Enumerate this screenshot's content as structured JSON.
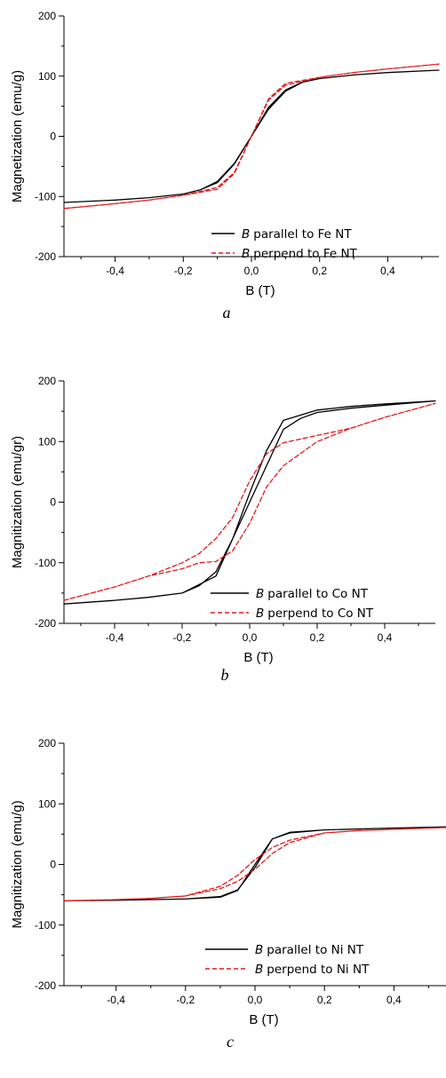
{
  "chart_data": [
    {
      "type": "line",
      "caption": "a",
      "xlabel": "B (T)",
      "ylabel": "Magnetization (emu/g)",
      "xlim": [
        -0.55,
        0.55
      ],
      "ylim": [
        -200,
        200
      ],
      "xticks": [
        -0.4,
        -0.2,
        0.0,
        0.2,
        0.4
      ],
      "xtick_labels": [
        "-0,4",
        "-0,2",
        "0,0",
        "0,2",
        "0,4"
      ],
      "yticks": [
        -200,
        -100,
        0,
        100,
        200
      ],
      "ytick_labels": [
        "-200",
        "-100",
        "0",
        "100",
        "200"
      ],
      "legend_position": "bottom-right",
      "series": [
        {
          "name_prefix": "B",
          "name": "parallel to Fe NT",
          "color": "#000000",
          "dash": "solid",
          "x": [
            -0.55,
            -0.4,
            -0.3,
            -0.2,
            -0.15,
            -0.1,
            -0.05,
            0.0,
            0.05,
            0.1,
            0.15,
            0.2,
            0.3,
            0.4,
            0.55,
            0.4,
            0.3,
            0.2,
            0.15,
            0.1,
            0.05,
            0.0,
            -0.05,
            -0.1,
            -0.15,
            -0.2,
            -0.3,
            -0.4,
            -0.55
          ],
          "y": [
            -110,
            -106,
            -102,
            -96,
            -89,
            -75,
            -45,
            0,
            45,
            75,
            90,
            96,
            102,
            106,
            110,
            106,
            102,
            96,
            90,
            77,
            48,
            0,
            -46,
            -77,
            -89,
            -96,
            -102,
            -106,
            -110
          ]
        },
        {
          "name_prefix": "B",
          "name": "perpend to Fe NT",
          "color": "#e31a1c",
          "dash": "dashed",
          "x": [
            -0.55,
            -0.4,
            -0.3,
            -0.2,
            -0.1,
            -0.05,
            0.0,
            0.05,
            0.1,
            0.2,
            0.3,
            0.4,
            0.55,
            0.4,
            0.3,
            0.2,
            0.1,
            0.05,
            0.0,
            -0.05,
            -0.1,
            -0.2,
            -0.3,
            -0.4,
            -0.55
          ],
          "y": [
            -120,
            -112,
            -106,
            -98,
            -85,
            -60,
            0,
            62,
            88,
            98,
            106,
            112,
            120,
            112,
            106,
            98,
            85,
            60,
            0,
            -62,
            -88,
            -98,
            -106,
            -112,
            -120
          ]
        }
      ]
    },
    {
      "type": "line",
      "caption": "b",
      "xlabel": "B (T)",
      "ylabel": "Magnitization (emu/gr)",
      "xlim": [
        -0.55,
        0.55
      ],
      "ylim": [
        -200,
        200
      ],
      "xticks": [
        -0.4,
        -0.2,
        0.0,
        0.2,
        0.4
      ],
      "xtick_labels": [
        "-0,4",
        "-0,2",
        "0,0",
        "0,2",
        "0,4"
      ],
      "yticks": [
        -200,
        -100,
        0,
        100,
        200
      ],
      "ytick_labels": [
        "-200",
        "-100",
        "0",
        "100",
        "200"
      ],
      "legend_position": "bottom-right",
      "series": [
        {
          "name_prefix": "B",
          "name": "parallel to Co NT",
          "color": "#000000",
          "dash": "solid",
          "x": [
            -0.55,
            -0.4,
            -0.3,
            -0.2,
            -0.1,
            -0.05,
            0.0,
            0.05,
            0.1,
            0.15,
            0.2,
            0.3,
            0.4,
            0.55,
            0.4,
            0.3,
            0.2,
            0.1,
            0.05,
            0.0,
            -0.05,
            -0.1,
            -0.15,
            -0.2,
            -0.3,
            -0.4,
            -0.55
          ],
          "y": [
            -168,
            -162,
            -157,
            -150,
            -122,
            -60,
            0,
            60,
            120,
            138,
            148,
            155,
            160,
            167,
            162,
            158,
            152,
            135,
            85,
            15,
            -60,
            -115,
            -138,
            -150,
            -157,
            -162,
            -168
          ]
        },
        {
          "name_prefix": "B",
          "name": "perpend to Co NT",
          "color": "#e31a1c",
          "dash": "dashed",
          "x": [
            -0.55,
            -0.4,
            -0.3,
            -0.2,
            -0.15,
            -0.1,
            -0.05,
            0.0,
            0.05,
            0.1,
            0.2,
            0.3,
            0.4,
            0.55,
            0.4,
            0.3,
            0.2,
            0.1,
            0.05,
            0.0,
            -0.05,
            -0.1,
            -0.15,
            -0.2,
            -0.3,
            -0.4,
            -0.55
          ],
          "y": [
            -162,
            -140,
            -122,
            -100,
            -85,
            -60,
            -25,
            35,
            80,
            98,
            110,
            122,
            140,
            163,
            140,
            122,
            100,
            60,
            25,
            -35,
            -80,
            -98,
            -100,
            -110,
            -122,
            -140,
            -162
          ]
        }
      ]
    },
    {
      "type": "line",
      "caption": "c",
      "xlabel": "B (T)",
      "ylabel": "Magnitization (emu/g)",
      "xlim": [
        -0.55,
        0.55
      ],
      "ylim": [
        -200,
        200
      ],
      "xticks": [
        -0.4,
        -0.2,
        0.0,
        0.2,
        0.4
      ],
      "xtick_labels": [
        "-0,4",
        "-0,2",
        "0,0",
        "0,2",
        "0,4"
      ],
      "yticks": [
        -200,
        -100,
        0,
        100,
        200
      ],
      "ytick_labels": [
        "-200",
        "-100",
        "0",
        "100",
        "200"
      ],
      "legend_position": "bottom-right",
      "series": [
        {
          "name_prefix": "B",
          "name": "parallel to Ni NT",
          "color": "#000000",
          "dash": "solid",
          "x": [
            -0.55,
            -0.4,
            -0.2,
            -0.1,
            -0.05,
            0.0,
            0.05,
            0.1,
            0.2,
            0.4,
            0.55,
            0.4,
            0.2,
            0.1,
            0.05,
            0.0,
            -0.05,
            -0.1,
            -0.2,
            -0.4,
            -0.55
          ],
          "y": [
            -60,
            -59,
            -57,
            -54,
            -43,
            0,
            42,
            53,
            57,
            60,
            62,
            60,
            57,
            52,
            42,
            -5,
            -42,
            -53,
            -57,
            -59,
            -60
          ]
        },
        {
          "name_prefix": "B",
          "name": "perpend to Ni NT",
          "color": "#e31a1c",
          "dash": "dashed",
          "x": [
            -0.55,
            -0.4,
            -0.3,
            -0.2,
            -0.1,
            -0.05,
            0.0,
            0.05,
            0.1,
            0.2,
            0.3,
            0.4,
            0.55,
            0.4,
            0.3,
            0.2,
            0.1,
            0.05,
            0.0,
            -0.05,
            -0.1,
            -0.2,
            -0.3,
            -0.4,
            -0.55
          ],
          "y": [
            -60,
            -58,
            -56,
            -52,
            -40,
            -28,
            -8,
            18,
            36,
            52,
            56,
            58,
            61,
            58,
            56,
            52,
            40,
            28,
            8,
            -18,
            -36,
            -52,
            -56,
            -58,
            -60
          ]
        }
      ]
    }
  ]
}
